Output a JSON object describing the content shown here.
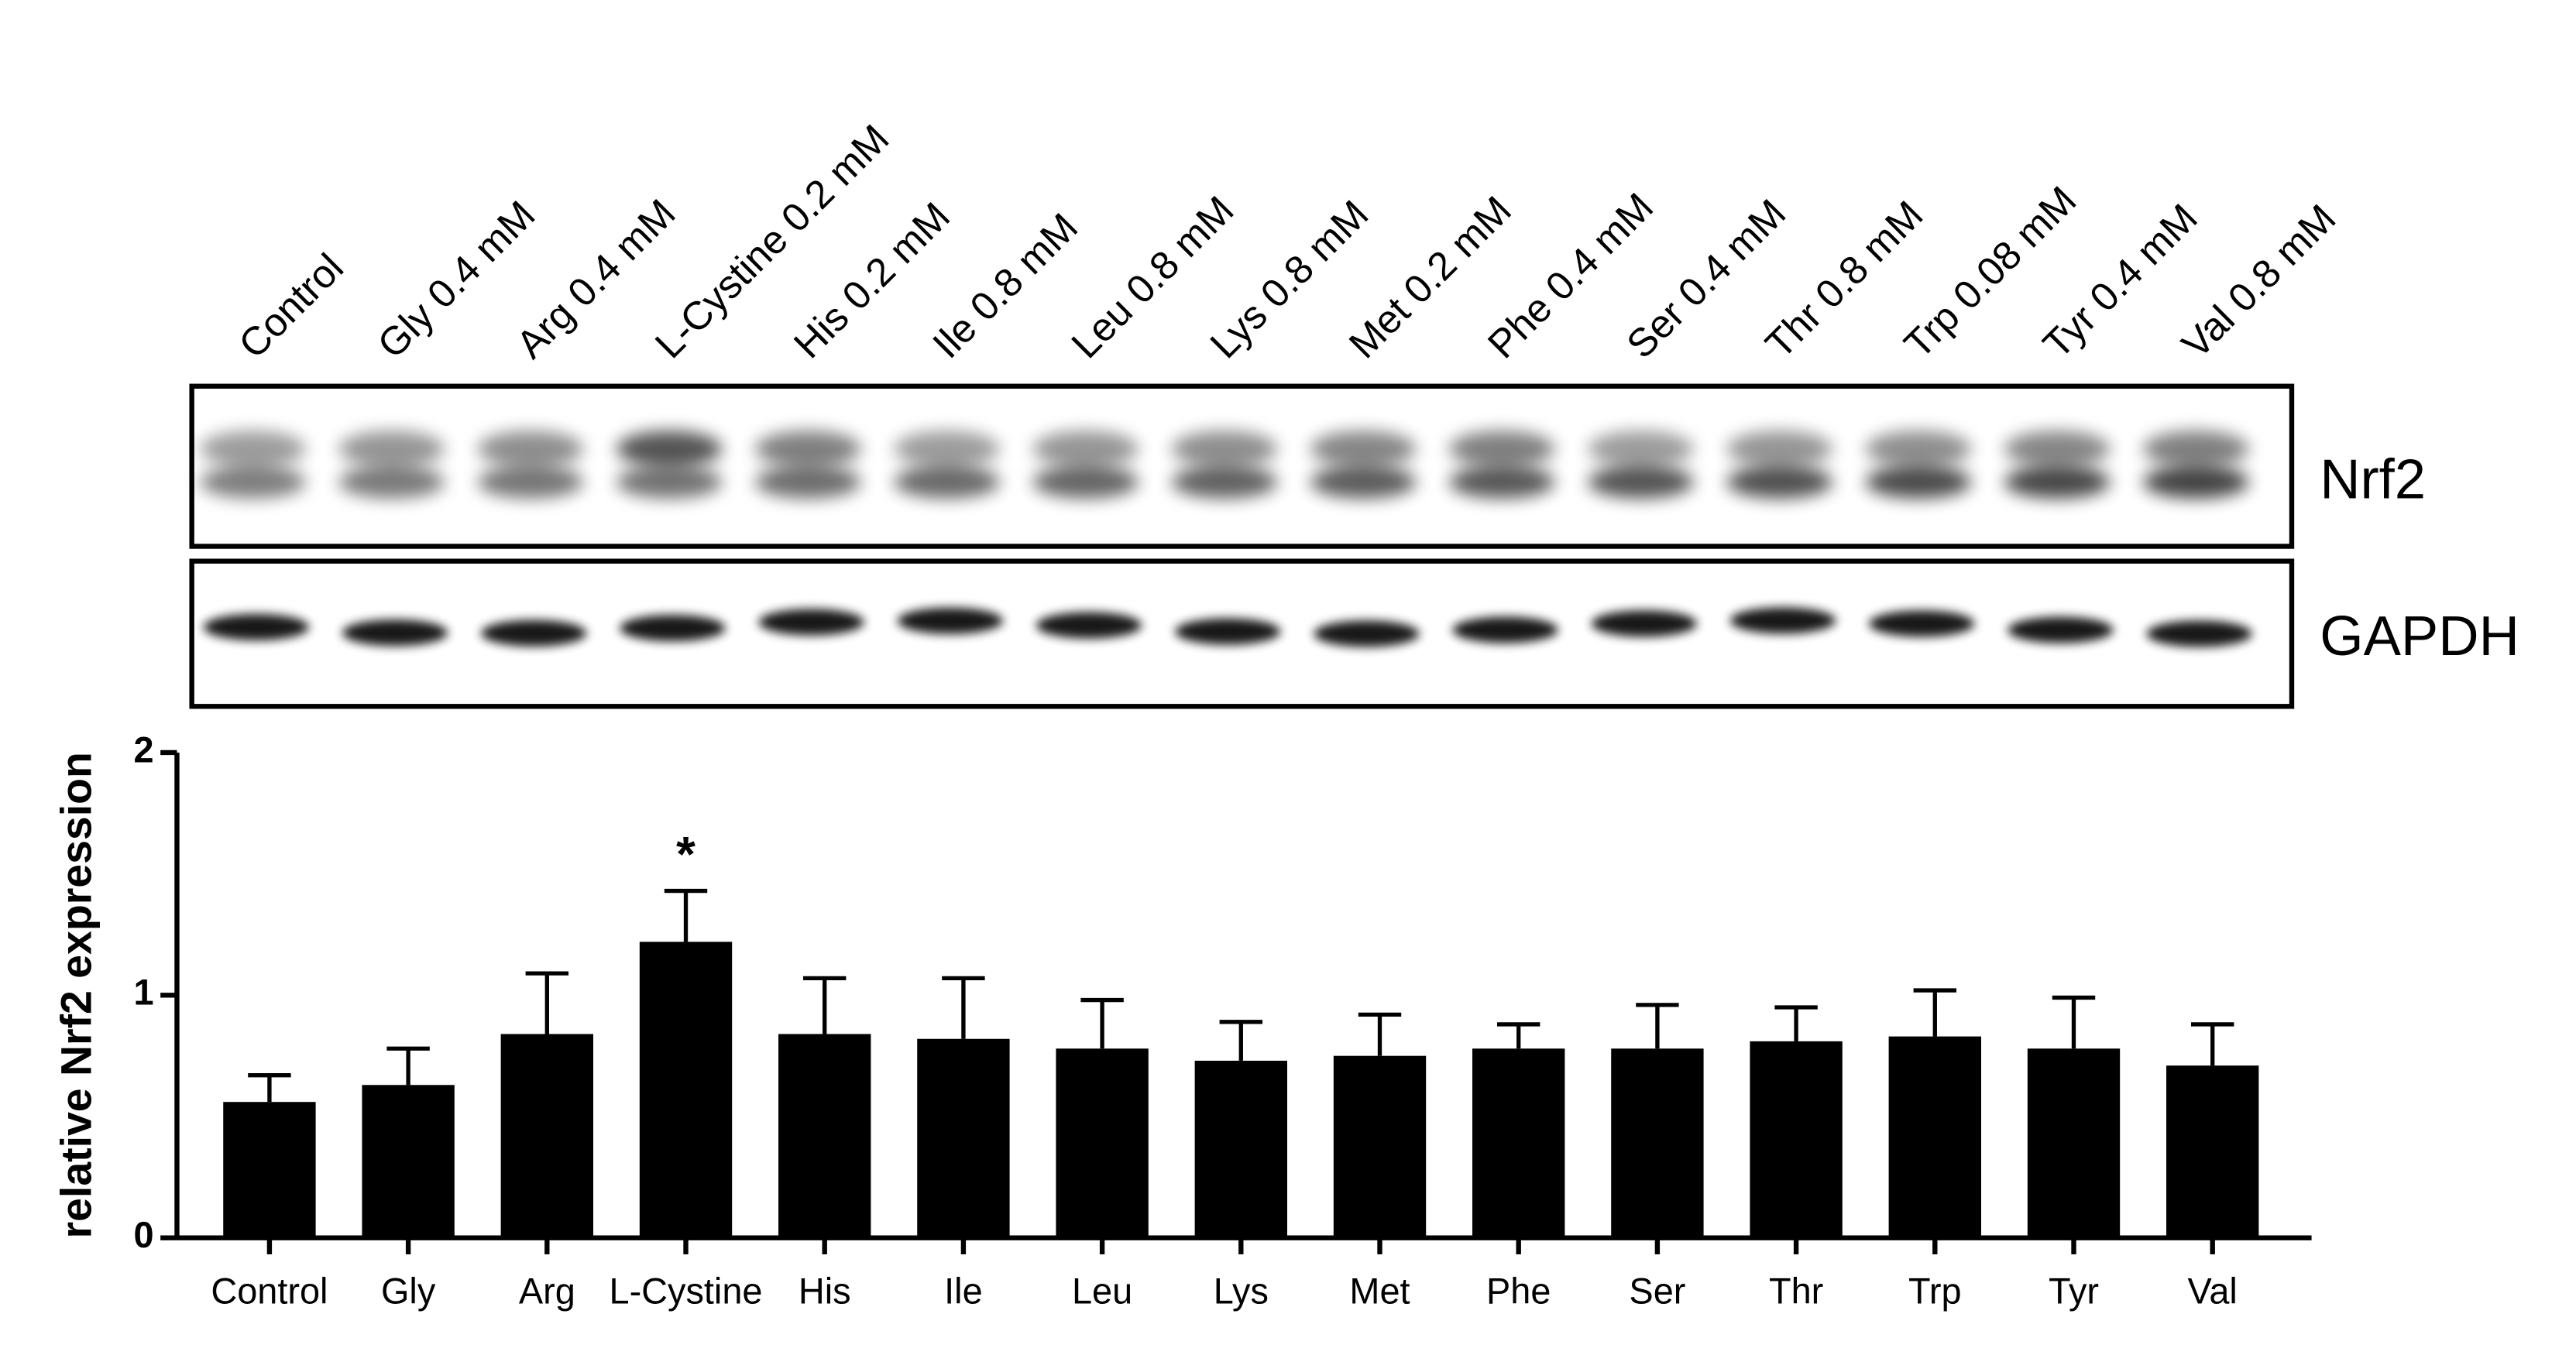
{
  "blot": {
    "lanes": [
      "Control",
      "Gly 0.4 mM",
      "Arg 0.4 mM",
      "L-Cystine 0.2 mM",
      "His 0.2 mM",
      "Ile 0.8 mM",
      "Leu 0.8 mM",
      "Lys 0.8 mM",
      "Met 0.2 mM",
      "Phe 0.4 mM",
      "Ser 0.4 mM",
      "Thr 0.8 mM",
      "Trp 0.08 mM",
      "Tyr 0.4 mM",
      "Val 0.8 mM"
    ],
    "rows": [
      "Nrf2",
      "GAPDH"
    ]
  },
  "chart_data": {
    "type": "bar",
    "y_label": "relative Nrf2 expression",
    "categories": [
      "Control",
      "Gly",
      "Arg",
      "L-Cystine",
      "His",
      "Ile",
      "Leu",
      "Lys",
      "Met",
      "Phe",
      "Ser",
      "Thr",
      "Trp",
      "Tyr",
      "Val"
    ],
    "values": [
      0.56,
      0.63,
      0.84,
      1.22,
      0.84,
      0.82,
      0.78,
      0.73,
      0.75,
      0.78,
      0.78,
      0.81,
      0.83,
      0.78,
      0.71
    ],
    "errors": [
      0.11,
      0.15,
      0.25,
      0.21,
      0.23,
      0.25,
      0.2,
      0.16,
      0.17,
      0.1,
      0.18,
      0.14,
      0.19,
      0.21,
      0.17
    ],
    "color": "#000000",
    "ylim": [
      0,
      2
    ],
    "yticks": [
      0,
      1,
      2
    ],
    "annotations": [
      {
        "text": "*",
        "category": "L-Cystine"
      }
    ]
  }
}
